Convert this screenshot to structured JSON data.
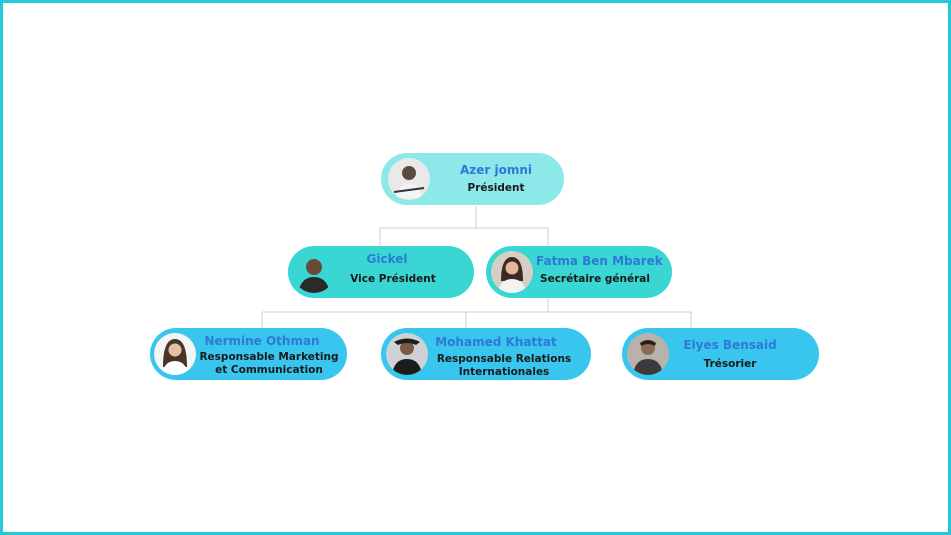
{
  "colors": {
    "frame": "#22c9d6",
    "president_fill": "#8de8ea",
    "level1_fill": "#3ad6d4",
    "level2_fill": "#38c6ee",
    "name_text": "#2f79d6",
    "connector": "#cfcfcf"
  },
  "org": {
    "president": {
      "name": "Azer jomni",
      "role": "Président",
      "avatar": "person-photo"
    },
    "vice_president": {
      "name": "Gickel",
      "role": "Vice Président",
      "avatar": "person-photo"
    },
    "secretary": {
      "name": "Fatma Ben Mbarek",
      "role": "Secrétaire général",
      "avatar": "person-photo"
    },
    "marketing": {
      "name": "Nermine Othman",
      "role_line1": "Responsable Marketing",
      "role_line2": "et Communication",
      "avatar": "person-photo"
    },
    "relations": {
      "name": "Mohamed Khattat",
      "role_line1": "Responsable  Relations",
      "role_line2": "Internationales",
      "avatar": "person-photo"
    },
    "treasurer": {
      "name": "Elyes Bensaid",
      "role": "Trésorier",
      "avatar": "person-photo"
    }
  }
}
